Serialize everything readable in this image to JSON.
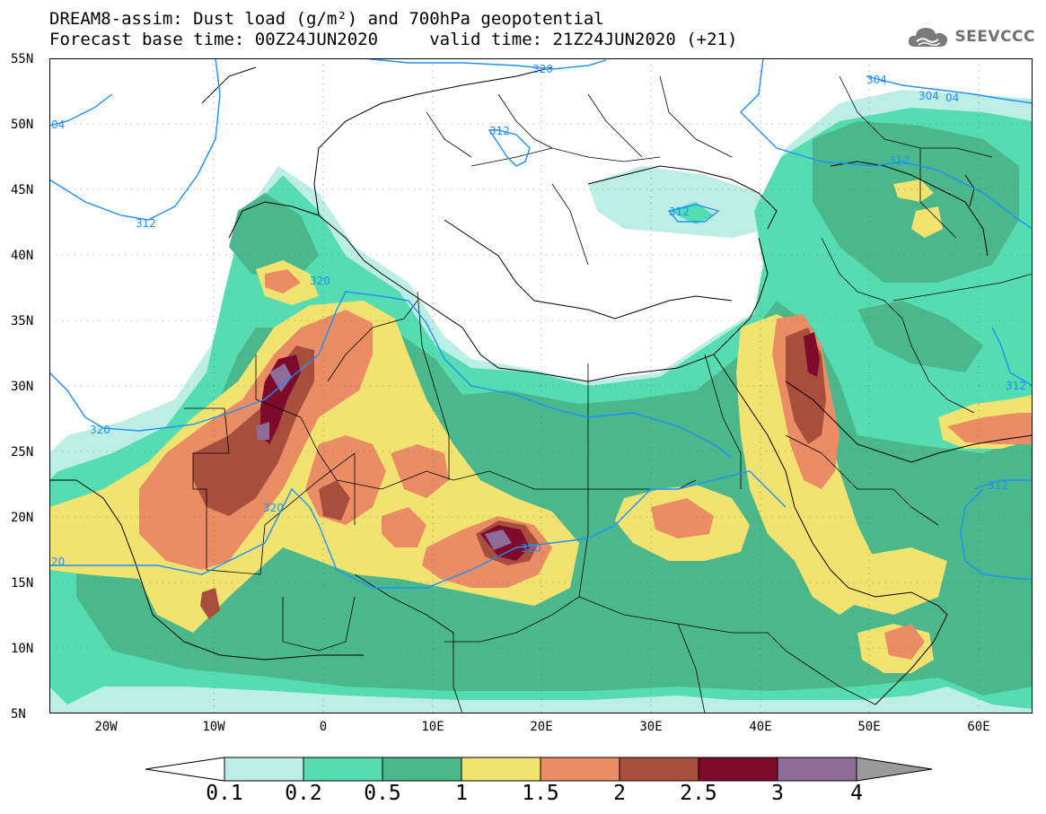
{
  "title": {
    "line1": "DREAM8-assim: Dust load (g/m²) and 700hPa geopotential",
    "line2": "Forecast base time: 00Z24JUN2020     valid time: 21Z24JUN2020 (+21)"
  },
  "logo": {
    "text": "SEEVCCC",
    "icon": "cloud-icon"
  },
  "map": {
    "lat_labels": [
      "55N",
      "50N",
      "45N",
      "40N",
      "35N",
      "30N",
      "25N",
      "20N",
      "15N",
      "10N",
      "5N"
    ],
    "lon_labels": [
      "20W",
      "10W",
      "0",
      "10E",
      "20E",
      "30E",
      "40E",
      "50E",
      "60E"
    ],
    "contour_labels": [
      "320",
      "304",
      "304",
      "04",
      "312",
      "312",
      "312",
      "312",
      "320",
      "320",
      "320",
      "320",
      "312",
      "312",
      "20",
      "04"
    ]
  },
  "colorbar": {
    "tick_labels": [
      "0.1",
      "0.2",
      "0.5",
      "1",
      "1.5",
      "2",
      "2.5",
      "3",
      "4"
    ],
    "colors": [
      "#bdeee6",
      "#55dcb0",
      "#4bb88c",
      "#f2e370",
      "#ea8c64",
      "#a84e3c",
      "#7e0a2c",
      "#8e6c9a",
      "#9a9a9a"
    ]
  }
}
